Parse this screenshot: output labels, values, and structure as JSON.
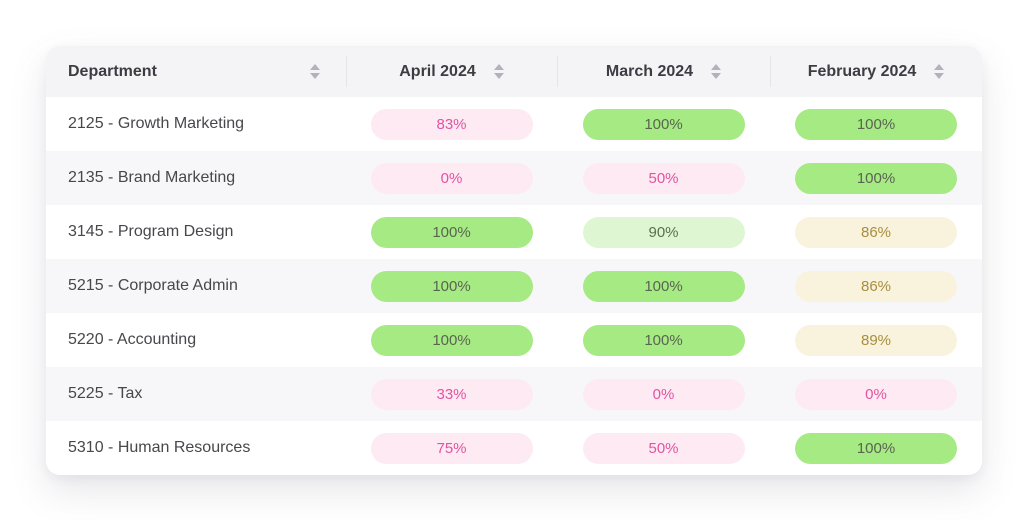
{
  "table": {
    "columns": [
      {
        "label": "Department"
      },
      {
        "label": "April 2024"
      },
      {
        "label": "March 2024"
      },
      {
        "label": "February 2024"
      }
    ],
    "rows": [
      {
        "department": "2125 - Growth Marketing",
        "values": [
          {
            "text": "83%",
            "variant": "pink"
          },
          {
            "text": "100%",
            "variant": "green"
          },
          {
            "text": "100%",
            "variant": "green"
          }
        ]
      },
      {
        "department": "2135 - Brand Marketing",
        "values": [
          {
            "text": "0%",
            "variant": "pink"
          },
          {
            "text": "50%",
            "variant": "pink"
          },
          {
            "text": "100%",
            "variant": "green"
          }
        ]
      },
      {
        "department": "3145 - Program Design",
        "values": [
          {
            "text": "100%",
            "variant": "green"
          },
          {
            "text": "90%",
            "variant": "light-green"
          },
          {
            "text": "86%",
            "variant": "beige"
          }
        ]
      },
      {
        "department": "5215 - Corporate Admin",
        "values": [
          {
            "text": "100%",
            "variant": "green"
          },
          {
            "text": "100%",
            "variant": "green"
          },
          {
            "text": "86%",
            "variant": "beige"
          }
        ]
      },
      {
        "department": "5220 - Accounting",
        "values": [
          {
            "text": "100%",
            "variant": "green"
          },
          {
            "text": "100%",
            "variant": "green"
          },
          {
            "text": "89%",
            "variant": "beige"
          }
        ]
      },
      {
        "department": "5225 - Tax",
        "values": [
          {
            "text": "33%",
            "variant": "pink"
          },
          {
            "text": "0%",
            "variant": "pink"
          },
          {
            "text": "0%",
            "variant": "pink"
          }
        ]
      },
      {
        "department": "5310 - Human Resources",
        "values": [
          {
            "text": "75%",
            "variant": "pink"
          },
          {
            "text": "50%",
            "variant": "pink"
          },
          {
            "text": "100%",
            "variant": "green"
          }
        ]
      }
    ]
  },
  "colors": {
    "green_bg": "#a6ea84",
    "green_text": "#59654f",
    "light_green_bg": "#def7d2",
    "light_green_text": "#5b7050",
    "beige_bg": "#f9f2dc",
    "beige_text": "#a78f3f",
    "pink_bg": "#fdeaf3",
    "pink_text": "#e254a2",
    "header_bg": "#f4f4f7",
    "row_alt_bg": "#f7f7f9"
  }
}
